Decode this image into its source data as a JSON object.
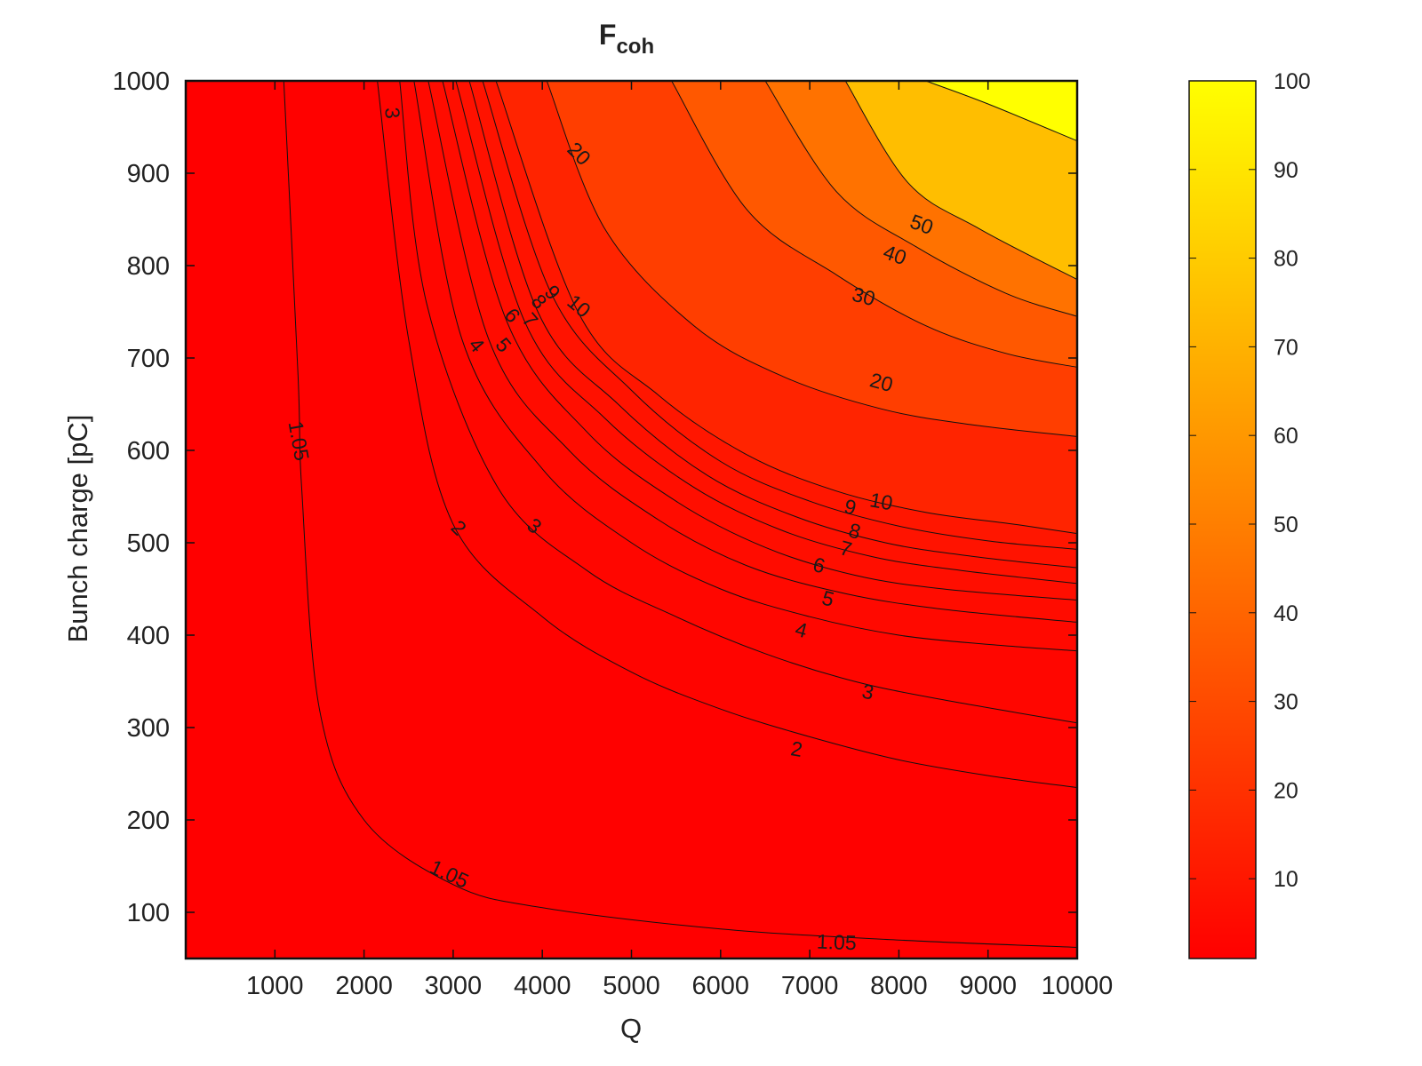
{
  "chart_data": {
    "type": "heatmap",
    "title": "F",
    "title_subscript": "coh",
    "xlabel": "Q",
    "ylabel": "Bunch charge [pC]",
    "xlim": [
      0,
      10000
    ],
    "ylim": [
      50,
      1000
    ],
    "x_ticks": [
      1000,
      2000,
      3000,
      4000,
      5000,
      6000,
      7000,
      8000,
      9000,
      10000
    ],
    "y_ticks": [
      100,
      200,
      300,
      400,
      500,
      600,
      700,
      800,
      900,
      1000
    ],
    "colorbar": {
      "range": [
        1,
        100
      ],
      "ticks": [
        10,
        20,
        30,
        40,
        50,
        60,
        70,
        80,
        90,
        100
      ],
      "colors": [
        "#ff0000",
        "#ff2000",
        "#ff4000",
        "#ff6000",
        "#ff8000",
        "#ff9f00",
        "#ffbf00",
        "#ffdf00",
        "#ffff00"
      ]
    },
    "colormap": {
      "min_color": "#ff0000",
      "mid_color": "#ff8000",
      "max_color": "#ffff00"
    },
    "grid": false,
    "legend": "colorbar-right",
    "contours": [
      {
        "level": 1.05,
        "label": "1.05",
        "points": [
          [
            1100,
            1000
          ],
          [
            1260,
            680
          ],
          [
            1300,
            560
          ],
          [
            1500,
            320
          ],
          [
            2000,
            200
          ],
          [
            3000,
            130
          ],
          [
            4000,
            105
          ],
          [
            6000,
            82
          ],
          [
            8000,
            70
          ],
          [
            10000,
            62
          ]
        ]
      },
      {
        "level": 2,
        "label": "2",
        "points": [
          [
            2150,
            1000
          ],
          [
            2500,
            720
          ],
          [
            3000,
            520
          ],
          [
            4000,
            420
          ],
          [
            5000,
            360
          ],
          [
            6000,
            320
          ],
          [
            7000,
            290
          ],
          [
            8000,
            265
          ],
          [
            9000,
            248
          ],
          [
            10000,
            235
          ]
        ]
      },
      {
        "level": 3,
        "label": "3",
        "points": [
          [
            2400,
            1000
          ],
          [
            2700,
            760
          ],
          [
            3500,
            560
          ],
          [
            4500,
            470
          ],
          [
            5500,
            420
          ],
          [
            6500,
            380
          ],
          [
            7500,
            350
          ],
          [
            8500,
            330
          ],
          [
            10000,
            305
          ]
        ]
      },
      {
        "level": 4,
        "label": "4",
        "points": [
          [
            2560,
            1000
          ],
          [
            3100,
            720
          ],
          [
            4000,
            580
          ],
          [
            5000,
            500
          ],
          [
            6000,
            450
          ],
          [
            7000,
            420
          ],
          [
            8000,
            400
          ],
          [
            9000,
            390
          ],
          [
            10000,
            383
          ]
        ]
      },
      {
        "level": 5,
        "label": "5",
        "points": [
          [
            2720,
            1000
          ],
          [
            3400,
            720
          ],
          [
            4300,
            600
          ],
          [
            5300,
            525
          ],
          [
            6300,
            475
          ],
          [
            7400,
            445
          ],
          [
            8500,
            428
          ],
          [
            10000,
            414
          ]
        ]
      },
      {
        "level": 6,
        "label": "6",
        "points": [
          [
            2880,
            1000
          ],
          [
            3600,
            740
          ],
          [
            4500,
            620
          ],
          [
            5500,
            545
          ],
          [
            6500,
            495
          ],
          [
            7500,
            465
          ],
          [
            8500,
            450
          ],
          [
            10000,
            438
          ]
        ]
      },
      {
        "level": 7,
        "label": "7",
        "points": [
          [
            3030,
            1000
          ],
          [
            3800,
            740
          ],
          [
            4700,
            635
          ],
          [
            5700,
            560
          ],
          [
            6700,
            513
          ],
          [
            7700,
            485
          ],
          [
            8700,
            470
          ],
          [
            10000,
            456
          ]
        ]
      },
      {
        "level": 8,
        "label": "8",
        "points": [
          [
            3180,
            1000
          ],
          [
            3950,
            750
          ],
          [
            4850,
            650
          ],
          [
            5850,
            573
          ],
          [
            6850,
            528
          ],
          [
            7850,
            500
          ],
          [
            8850,
            485
          ],
          [
            10000,
            473
          ]
        ]
      },
      {
        "level": 9,
        "label": "9",
        "points": [
          [
            3330,
            1000
          ],
          [
            4100,
            770
          ],
          [
            5000,
            665
          ],
          [
            6000,
            588
          ],
          [
            7000,
            545
          ],
          [
            8000,
            518
          ],
          [
            9000,
            502
          ],
          [
            10000,
            493
          ]
        ]
      },
      {
        "level": 10,
        "label": "10",
        "points": [
          [
            3480,
            1000
          ],
          [
            4400,
            750
          ],
          [
            5300,
            660
          ],
          [
            6300,
            595
          ],
          [
            7300,
            556
          ],
          [
            8300,
            533
          ],
          [
            9300,
            520
          ],
          [
            10000,
            510
          ]
        ]
      },
      {
        "level": 20,
        "label": "20",
        "points": [
          [
            4050,
            1000
          ],
          [
            4700,
            840
          ],
          [
            5700,
            735
          ],
          [
            6700,
            680
          ],
          [
            7800,
            645
          ],
          [
            8800,
            628
          ],
          [
            10000,
            615
          ]
        ]
      },
      {
        "level": 30,
        "label": "30",
        "points": [
          [
            5450,
            1000
          ],
          [
            6300,
            860
          ],
          [
            7300,
            790
          ],
          [
            8300,
            735
          ],
          [
            9200,
            705
          ],
          [
            10000,
            690
          ]
        ]
      },
      {
        "level": 40,
        "label": "40",
        "points": [
          [
            6500,
            1000
          ],
          [
            7300,
            880
          ],
          [
            8200,
            820
          ],
          [
            9200,
            770
          ],
          [
            10000,
            745
          ]
        ]
      },
      {
        "level": 50,
        "label": "50",
        "points": [
          [
            7400,
            1000
          ],
          [
            8100,
            890
          ],
          [
            8900,
            840
          ],
          [
            10000,
            785
          ]
        ]
      },
      {
        "level": 100,
        "label": "",
        "points": [
          [
            8300,
            1000
          ],
          [
            9000,
            975
          ],
          [
            10000,
            935
          ]
        ]
      }
    ],
    "contour_labels": [
      {
        "text": "1.05",
        "x": 1250,
        "y": 610,
        "angle": 80
      },
      {
        "text": "1.05",
        "x": 2950,
        "y": 140,
        "angle": 25
      },
      {
        "text": "1.05",
        "x": 7300,
        "y": 66,
        "angle": 2
      },
      {
        "text": "2",
        "x": 3050,
        "y": 515,
        "angle": 45
      },
      {
        "text": "2",
        "x": 6850,
        "y": 275,
        "angle": 10
      },
      {
        "text": "3",
        "x": 2300,
        "y": 965,
        "angle": 85
      },
      {
        "text": "3",
        "x": 3900,
        "y": 517,
        "angle": 40
      },
      {
        "text": "3",
        "x": 7650,
        "y": 337,
        "angle": 12
      },
      {
        "text": "4",
        "x": 3250,
        "y": 713,
        "angle": 50
      },
      {
        "text": "4",
        "x": 6900,
        "y": 404,
        "angle": 15
      },
      {
        "text": "5",
        "x": 3550,
        "y": 713,
        "angle": 50
      },
      {
        "text": "5",
        "x": 7200,
        "y": 438,
        "angle": 15
      },
      {
        "text": "6",
        "x": 3650,
        "y": 745,
        "angle": 50
      },
      {
        "text": "6",
        "x": 7100,
        "y": 474,
        "angle": 15
      },
      {
        "text": "7",
        "x": 3850,
        "y": 740,
        "angle": 50
      },
      {
        "text": "7",
        "x": 7400,
        "y": 492,
        "angle": 15
      },
      {
        "text": "8",
        "x": 3950,
        "y": 760,
        "angle": 50
      },
      {
        "text": "8",
        "x": 7500,
        "y": 511,
        "angle": 15
      },
      {
        "text": "9",
        "x": 4100,
        "y": 770,
        "angle": 50
      },
      {
        "text": "9",
        "x": 7450,
        "y": 537,
        "angle": 15
      },
      {
        "text": "10",
        "x": 4400,
        "y": 755,
        "angle": 40
      },
      {
        "text": "10",
        "x": 7800,
        "y": 543,
        "angle": 10
      },
      {
        "text": "20",
        "x": 4400,
        "y": 920,
        "angle": 45
      },
      {
        "text": "20",
        "x": 7800,
        "y": 672,
        "angle": 15
      },
      {
        "text": "30",
        "x": 7600,
        "y": 765,
        "angle": 15
      },
      {
        "text": "40",
        "x": 7950,
        "y": 810,
        "angle": 20
      },
      {
        "text": "50",
        "x": 8250,
        "y": 843,
        "angle": 20
      }
    ]
  }
}
